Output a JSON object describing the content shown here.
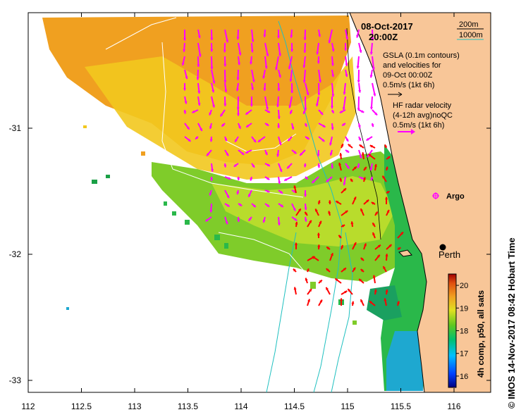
{
  "title": {
    "date": "08-Oct-2017",
    "time": "20:00Z"
  },
  "depth_legend": {
    "shallow": "200m",
    "deep": "1000m",
    "shallow_color": "#000000",
    "deep_color": "#20c0c0"
  },
  "gsla_legend": {
    "line1": "GSLA (0.1m contours)",
    "line2": "and velocities for",
    "line3": "09-Oct 00:00Z",
    "line4": "0.5m/s (1kt 6h)"
  },
  "hf_legend": {
    "line1": "HF radar velocity",
    "line2": "(4-12h avg)noQC",
    "line3": "0.5m/s (1kt 6h)",
    "color": "#ff00ff"
  },
  "places": {
    "argo": "Argo",
    "perth": "Perth"
  },
  "axes": {
    "x_ticks": [
      "112",
      "112.5",
      "113",
      "113.5",
      "114",
      "114.5",
      "115",
      "115.5",
      "116"
    ],
    "y_ticks": [
      "-31",
      "-32",
      "-33"
    ]
  },
  "colorbar": {
    "ticks": [
      "20",
      "19",
      "18",
      "17",
      "16"
    ],
    "label": "4h comp, p50, all sats",
    "range": [
      15.5,
      20.5
    ]
  },
  "credit": "©  IMOS 14-Nov-2017 08:42 Hobart Time",
  "colors": {
    "land": "#f8c698",
    "hf_vector": "#ff00ff",
    "sst_vector": "#ff0000",
    "shelf_contour": "#20c0c0"
  }
}
